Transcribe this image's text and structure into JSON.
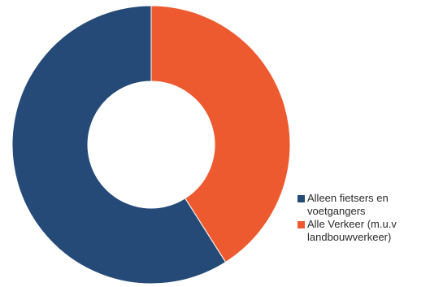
{
  "colors": {
    "series_1": "#254a77",
    "series_2": "#ee5a2f"
  },
  "chart_data": {
    "type": "pie",
    "title": "",
    "xlabel": "",
    "ylabel": "",
    "categories": [
      "Alleen fietsers en voetgangers",
      "Alle Verkeer (m.u.v landbouwverkeer)"
    ],
    "values": [
      59,
      41
    ],
    "legend_position": "bottom-right"
  }
}
